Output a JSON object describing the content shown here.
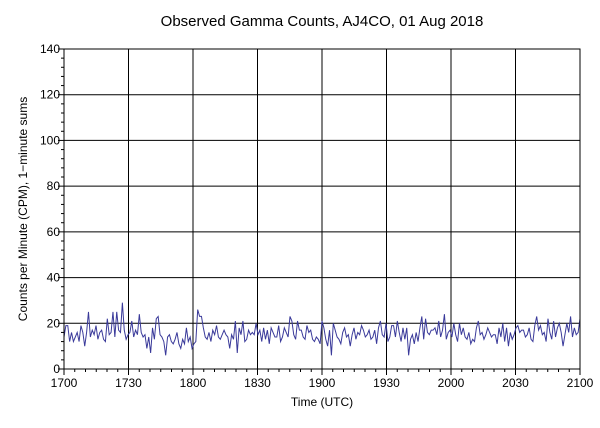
{
  "chart_data": {
    "type": "line",
    "title": "Observed Gamma Counts, AJ4CO, 01 Aug 2018",
    "xlabel": "Time (UTC)",
    "ylabel": "Counts per Minute (CPM), 1−minute sums",
    "xlim": [
      "17:00",
      "21:00"
    ],
    "ylim": [
      0,
      140
    ],
    "x_tick_labels": [
      "1700",
      "1730",
      "1800",
      "1830",
      "1900",
      "1930",
      "2000",
      "2030",
      "2100"
    ],
    "y_tick_labels": [
      "0",
      "20",
      "40",
      "60",
      "80",
      "100",
      "120",
      "140"
    ],
    "grid": true,
    "line_color": "#3a3a9a",
    "series": [
      {
        "values": [
          14,
          19,
          19,
          12,
          16,
          12,
          14,
          16,
          12,
          19,
          16,
          10,
          16,
          25,
          14,
          17,
          15,
          19,
          13,
          16,
          17,
          13,
          12,
          22,
          15,
          16,
          25,
          14,
          25,
          17,
          16,
          29,
          17,
          13,
          15,
          16,
          21,
          14,
          17,
          15,
          24,
          16,
          14,
          15,
          9,
          14,
          7,
          18,
          13,
          22,
          23,
          15,
          14,
          12,
          6,
          14,
          15,
          12,
          11,
          13,
          16,
          11,
          9,
          13,
          11,
          18,
          12,
          14,
          9,
          11,
          12,
          26,
          23,
          23,
          18,
          14,
          13,
          16,
          12,
          17,
          15,
          19,
          14,
          13,
          15,
          17,
          15,
          14,
          9,
          15,
          13,
          21,
          7,
          18,
          15,
          21,
          12,
          13,
          17,
          15,
          16,
          15,
          20,
          15,
          17,
          12,
          18,
          13,
          17,
          11,
          18,
          16,
          14,
          14,
          19,
          12,
          14,
          18,
          16,
          14,
          23,
          21,
          15,
          13,
          21,
          17,
          17,
          14,
          13,
          19,
          16,
          17,
          13,
          12,
          14,
          13,
          11,
          21,
          18,
          13,
          10,
          17,
          6,
          20,
          17,
          14,
          13,
          11,
          16,
          18,
          14,
          15,
          10,
          15,
          18,
          13,
          16,
          15,
          19,
          17,
          14,
          15,
          17,
          13,
          14,
          17,
          11,
          18,
          21,
          15,
          14,
          20,
          12,
          14,
          19,
          19,
          14,
          21,
          16,
          12,
          18,
          13,
          18,
          6,
          13,
          15,
          11,
          16,
          12,
          18,
          23,
          13,
          22,
          16,
          15,
          17,
          17,
          18,
          15,
          21,
          14,
          17,
          24,
          13,
          16,
          17,
          14,
          20,
          15,
          12,
          20,
          15,
          18,
          14,
          13,
          16,
          11,
          13,
          12,
          18,
          21,
          15,
          16,
          13,
          15,
          18,
          16,
          14,
          15,
          15,
          11,
          18,
          14,
          20,
          12,
          18,
          10,
          16,
          13,
          15,
          18,
          19,
          16,
          17,
          17,
          14,
          15,
          18,
          13,
          12,
          19,
          23,
          17,
          19,
          15,
          16,
          12,
          22,
          16,
          13,
          21,
          14,
          18,
          20,
          16,
          10,
          15,
          20,
          16,
          23,
          14,
          18,
          15,
          16,
          22
        ]
      }
    ]
  }
}
